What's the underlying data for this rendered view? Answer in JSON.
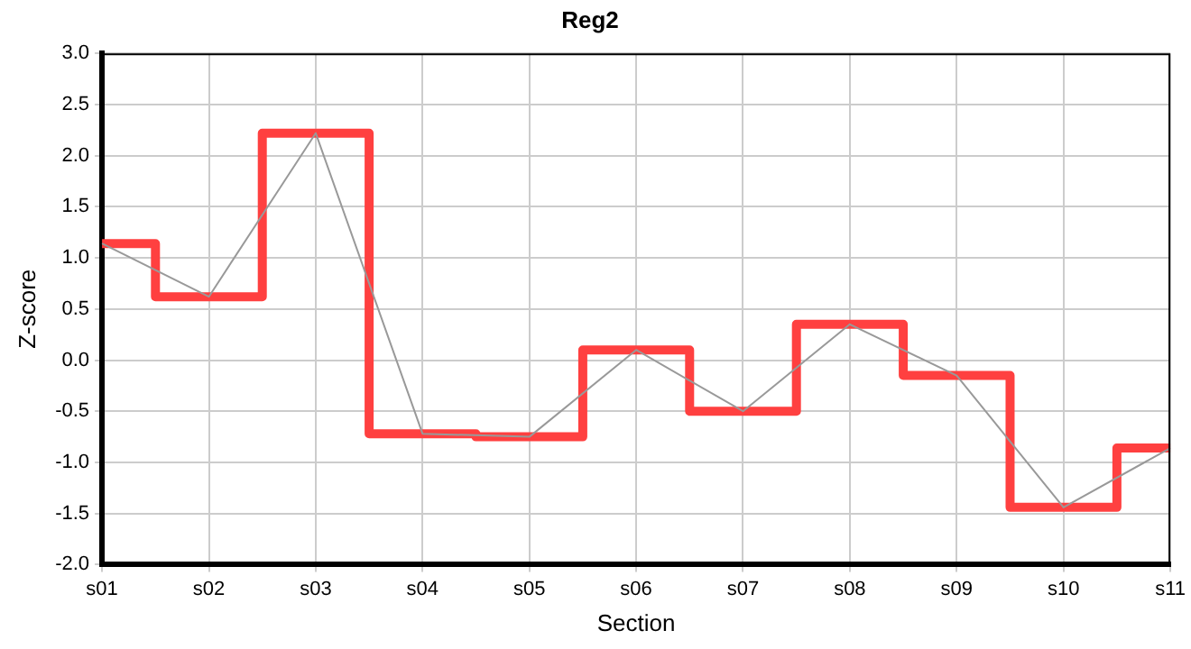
{
  "chart_data": {
    "type": "step",
    "title": "Reg2",
    "xlabel": "Section",
    "ylabel": "Z-score",
    "categories": [
      "s01",
      "s02",
      "s03",
      "s04",
      "s05",
      "s06",
      "s07",
      "s08",
      "s09",
      "s10",
      "s11"
    ],
    "series": [
      {
        "type": "step",
        "color": "#ff4040",
        "values": [
          1.14,
          0.62,
          2.22,
          -0.72,
          -0.75,
          0.1,
          -0.5,
          0.35,
          -0.15,
          -1.44,
          -0.86
        ]
      },
      {
        "type": "line",
        "color": "#999999",
        "values": [
          1.14,
          0.62,
          2.22,
          -0.72,
          -0.75,
          0.1,
          -0.5,
          0.35,
          -0.15,
          -1.44,
          -0.86
        ]
      }
    ],
    "ylim": [
      -2.0,
      3.0
    ],
    "yticks": [
      {
        "value": -2,
        "label": "-2.0"
      },
      {
        "value": -1.5,
        "label": "-1.5"
      },
      {
        "value": -1,
        "label": "-1.0"
      },
      {
        "value": -0.5,
        "label": "-0.5"
      },
      {
        "value": 0,
        "label": "0.0"
      },
      {
        "value": 0.5,
        "label": "0.5"
      },
      {
        "value": 1,
        "label": "1.0"
      },
      {
        "value": 1.5,
        "label": "1.5"
      },
      {
        "value": 2,
        "label": "2.0"
      },
      {
        "value": 2.5,
        "label": "2.5"
      },
      {
        "value": 3,
        "label": "3.0"
      }
    ],
    "grid": true,
    "legend": false,
    "marker": "none"
  }
}
